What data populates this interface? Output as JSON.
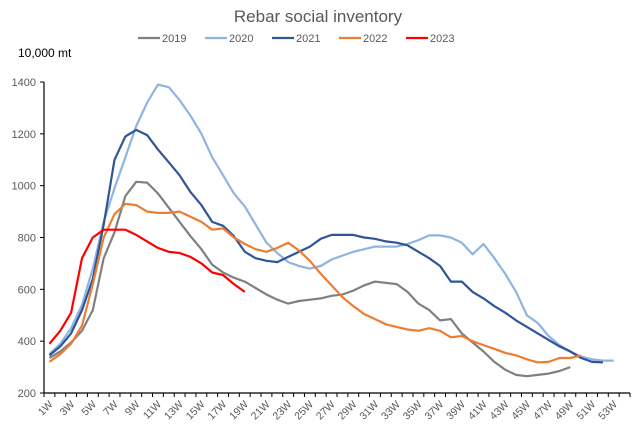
{
  "chart_data": {
    "type": "line",
    "title": "Rebar social inventory",
    "ylabel": "10,000 mt",
    "xlabel": "",
    "ylim": [
      200,
      1400
    ],
    "yticks": [
      200,
      400,
      600,
      800,
      1000,
      1200,
      1400
    ],
    "grid": false,
    "legend": "top",
    "x": [
      "1W",
      "2W",
      "3W",
      "4W",
      "5W",
      "6W",
      "7W",
      "8W",
      "9W",
      "10W",
      "11W",
      "12W",
      "13W",
      "14W",
      "15W",
      "16W",
      "17W",
      "18W",
      "19W",
      "20W",
      "21W",
      "22W",
      "23W",
      "24W",
      "25W",
      "26W",
      "27W",
      "28W",
      "29W",
      "30W",
      "31W",
      "32W",
      "33W",
      "34W",
      "35W",
      "36W",
      "37W",
      "38W",
      "39W",
      "40W",
      "41W",
      "42W",
      "43W",
      "44W",
      "45W",
      "46W",
      "47W",
      "48W",
      "49W",
      "50W",
      "51W",
      "52W",
      "53W"
    ],
    "xtick_labels": [
      "1W",
      "3W",
      "5W",
      "7W",
      "9W",
      "11W",
      "13W",
      "15W",
      "17W",
      "19W",
      "21W",
      "23W",
      "25W",
      "27W",
      "29W",
      "31W",
      "33W",
      "35W",
      "37W",
      "39W",
      "41W",
      "43W",
      "45W",
      "47W",
      "49W",
      "51W",
      "53W"
    ],
    "series": [
      {
        "name": "2019",
        "color": "#808080",
        "values": [
          335,
          360,
          395,
          440,
          520,
          720,
          820,
          960,
          1015,
          1012,
          970,
          915,
          860,
          805,
          755,
          695,
          665,
          645,
          630,
          605,
          580,
          560,
          545,
          555,
          560,
          565,
          575,
          580,
          595,
          615,
          630,
          625,
          620,
          590,
          545,
          520,
          480,
          485,
          430,
          395,
          360,
          320,
          290,
          270,
          265,
          270,
          275,
          285,
          300,
          null,
          null,
          null,
          null
        ]
      },
      {
        "name": "2020",
        "color": "#8EB4E3",
        "values": [
          350,
          390,
          450,
          540,
          680,
          860,
          990,
          1110,
          1230,
          1320,
          1390,
          1380,
          1330,
          1270,
          1200,
          1110,
          1040,
          970,
          920,
          850,
          780,
          740,
          705,
          690,
          680,
          690,
          715,
          730,
          745,
          755,
          765,
          765,
          765,
          775,
          790,
          808,
          808,
          800,
          780,
          735,
          775,
          720,
          660,
          590,
          500,
          470,
          420,
          385,
          360,
          340,
          330,
          325,
          325
        ]
      },
      {
        "name": "2021",
        "color": "#2F5597",
        "values": [
          345,
          380,
          430,
          520,
          640,
          850,
          1100,
          1190,
          1215,
          1195,
          1140,
          1090,
          1040,
          975,
          925,
          860,
          845,
          805,
          745,
          720,
          710,
          705,
          725,
          745,
          765,
          795,
          810,
          810,
          810,
          800,
          795,
          785,
          780,
          770,
          745,
          720,
          690,
          630,
          630,
          590,
          565,
          535,
          510,
          480,
          455,
          430,
          405,
          380,
          360,
          335,
          320,
          318,
          null
        ]
      },
      {
        "name": "2022",
        "color": "#ED7D31",
        "values": [
          320,
          350,
          390,
          460,
          620,
          800,
          890,
          930,
          925,
          900,
          895,
          895,
          900,
          880,
          860,
          830,
          835,
          800,
          775,
          755,
          745,
          760,
          780,
          750,
          710,
          660,
          615,
          570,
          535,
          505,
          485,
          465,
          455,
          445,
          440,
          450,
          440,
          415,
          420,
          400,
          385,
          370,
          355,
          345,
          330,
          318,
          320,
          335,
          335,
          345,
          null,
          null,
          null
        ]
      },
      {
        "name": "2023",
        "color": "#FF0000",
        "values": [
          390,
          440,
          510,
          720,
          800,
          830,
          830,
          830,
          810,
          785,
          760,
          745,
          740,
          725,
          700,
          665,
          655,
          620,
          590,
          null,
          null,
          null,
          null,
          null,
          null,
          null,
          null,
          null,
          null,
          null,
          null,
          null,
          null,
          null,
          null,
          null,
          null,
          null,
          null,
          null,
          null,
          null,
          null,
          null,
          null,
          null,
          null,
          null,
          null,
          null,
          null,
          null,
          null
        ]
      }
    ]
  }
}
